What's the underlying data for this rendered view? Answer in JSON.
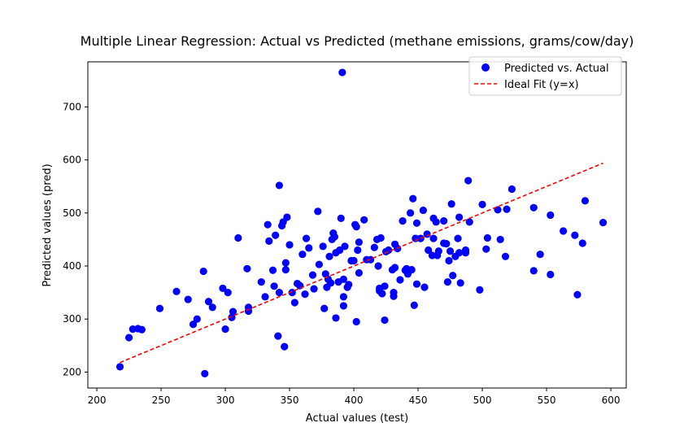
{
  "chart_data": {
    "type": "scatter",
    "title": "Multiple Linear Regression: Actual vs Predicted (methane emissions, grams/cow/day)",
    "xlabel": "Actual values (test)",
    "ylabel": "Predicted values (pred)",
    "xlim": [
      193,
      612
    ],
    "ylim": [
      170,
      785
    ],
    "xticks": [
      200,
      250,
      300,
      350,
      400,
      450,
      500,
      550,
      600
    ],
    "yticks": [
      200,
      300,
      400,
      500,
      600,
      700
    ],
    "grid": false,
    "legend_position": "top-right",
    "colors": {
      "points": "#0000ff",
      "fit_line": "#ff0000"
    },
    "series": [
      {
        "name": "Predicted vs. Actual",
        "kind": "scatter",
        "points": [
          [
            218,
            210
          ],
          [
            225,
            265
          ],
          [
            228,
            281
          ],
          [
            232,
            282
          ],
          [
            235,
            280
          ],
          [
            249,
            320
          ],
          [
            262,
            352
          ],
          [
            271,
            337
          ],
          [
            275,
            290
          ],
          [
            278,
            300
          ],
          [
            283,
            390
          ],
          [
            284,
            197
          ],
          [
            287,
            333
          ],
          [
            290,
            322
          ],
          [
            298,
            358
          ],
          [
            300,
            281
          ],
          [
            302,
            350
          ],
          [
            305,
            303
          ],
          [
            306,
            314
          ],
          [
            310,
            453
          ],
          [
            317,
            395
          ],
          [
            318,
            322
          ],
          [
            318,
            315
          ],
          [
            328,
            370
          ],
          [
            331,
            342
          ],
          [
            333,
            478
          ],
          [
            334,
            447
          ],
          [
            337,
            392
          ],
          [
            338,
            362
          ],
          [
            339,
            458
          ],
          [
            341,
            268
          ],
          [
            342,
            350
          ],
          [
            342,
            552
          ],
          [
            344,
            476
          ],
          [
            345,
            483
          ],
          [
            346,
            248
          ],
          [
            347,
            393
          ],
          [
            347,
            406
          ],
          [
            348,
            492
          ],
          [
            350,
            440
          ],
          [
            352,
            350
          ],
          [
            354,
            331
          ],
          [
            356,
            367
          ],
          [
            358,
            363
          ],
          [
            360,
            422
          ],
          [
            362,
            347
          ],
          [
            363,
            452
          ],
          [
            365,
            434
          ],
          [
            368,
            383
          ],
          [
            369,
            357
          ],
          [
            372,
            503
          ],
          [
            373,
            403
          ],
          [
            376,
            437
          ],
          [
            377,
            320
          ],
          [
            378,
            385
          ],
          [
            379,
            360
          ],
          [
            380,
            375
          ],
          [
            381,
            418
          ],
          [
            382,
            368
          ],
          [
            383,
            450
          ],
          [
            384,
            462
          ],
          [
            385,
            455
          ],
          [
            386,
            302
          ],
          [
            386,
            425
          ],
          [
            388,
            370
          ],
          [
            389,
            430
          ],
          [
            390,
            490
          ],
          [
            391,
            765
          ],
          [
            392,
            375
          ],
          [
            392,
            325
          ],
          [
            392,
            342
          ],
          [
            393,
            437
          ],
          [
            395,
            360
          ],
          [
            396,
            365
          ],
          [
            398,
            410
          ],
          [
            400,
            410
          ],
          [
            401,
            478
          ],
          [
            402,
            474
          ],
          [
            402,
            295
          ],
          [
            403,
            430
          ],
          [
            404,
            387
          ],
          [
            404,
            445
          ],
          [
            408,
            487
          ],
          [
            410,
            412
          ],
          [
            413,
            412
          ],
          [
            416,
            435
          ],
          [
            418,
            450
          ],
          [
            419,
            400
          ],
          [
            420,
            353
          ],
          [
            420,
            358
          ],
          [
            421,
            453
          ],
          [
            422,
            348
          ],
          [
            424,
            298
          ],
          [
            424,
            362
          ],
          [
            425,
            427
          ],
          [
            427,
            430
          ],
          [
            430,
            393
          ],
          [
            431,
            350
          ],
          [
            431,
            343
          ],
          [
            432,
            397
          ],
          [
            432,
            441
          ],
          [
            434,
            433
          ],
          [
            436,
            374
          ],
          [
            438,
            485
          ],
          [
            440,
            392
          ],
          [
            441,
            395
          ],
          [
            442,
            385
          ],
          [
            444,
            500
          ],
          [
            445,
            393
          ],
          [
            446,
            527
          ],
          [
            447,
            326
          ],
          [
            448,
            452
          ],
          [
            449,
            481
          ],
          [
            449,
            366
          ],
          [
            452,
            452
          ],
          [
            454,
            505
          ],
          [
            455,
            360
          ],
          [
            457,
            460
          ],
          [
            458,
            430
          ],
          [
            461,
            420
          ],
          [
            462,
            490
          ],
          [
            462,
            452
          ],
          [
            464,
            483
          ],
          [
            465,
            420
          ],
          [
            466,
            428
          ],
          [
            470,
            485
          ],
          [
            470,
            443
          ],
          [
            472,
            442
          ],
          [
            473,
            370
          ],
          [
            474,
            410
          ],
          [
            475,
            428
          ],
          [
            476,
            517
          ],
          [
            477,
            382
          ],
          [
            479,
            418
          ],
          [
            481,
            452
          ],
          [
            482,
            492
          ],
          [
            482,
            425
          ],
          [
            483,
            368
          ],
          [
            487,
            425
          ],
          [
            487,
            430
          ],
          [
            489,
            561
          ],
          [
            490,
            483
          ],
          [
            498,
            355
          ],
          [
            500,
            516
          ],
          [
            503,
            432
          ],
          [
            504,
            453
          ],
          [
            512,
            506
          ],
          [
            514,
            450
          ],
          [
            518,
            418
          ],
          [
            519,
            507
          ],
          [
            523,
            545
          ],
          [
            540,
            510
          ],
          [
            540,
            391
          ],
          [
            545,
            422
          ],
          [
            553,
            496
          ],
          [
            553,
            384
          ],
          [
            563,
            466
          ],
          [
            572,
            458
          ],
          [
            574,
            346
          ],
          [
            578,
            443
          ],
          [
            580,
            523
          ],
          [
            594,
            482
          ]
        ]
      },
      {
        "name": "Ideal Fit (y=x)",
        "kind": "line",
        "style": "dashed",
        "points": [
          [
            218,
            218
          ],
          [
            594,
            594
          ]
        ]
      }
    ]
  }
}
